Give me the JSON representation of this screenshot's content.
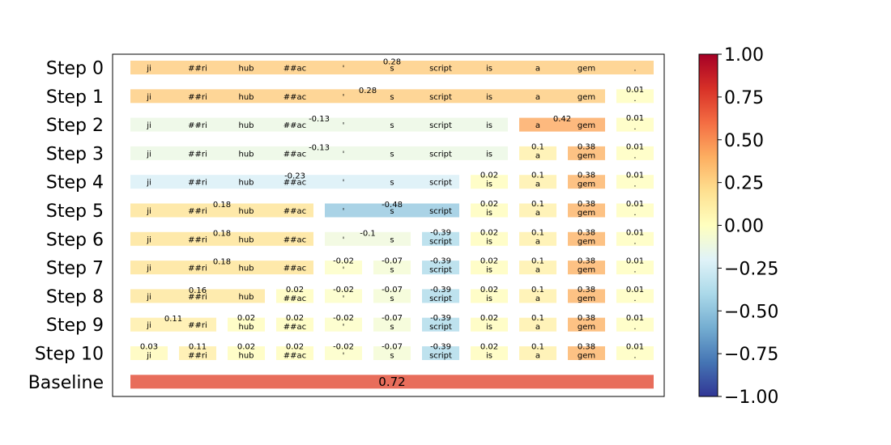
{
  "chart_data": {
    "type": "heatmap",
    "title": "",
    "xlabel": "",
    "ylabel": "",
    "tokens": [
      "ji",
      "##ri",
      "hub",
      "##ac",
      "'",
      "s",
      "script",
      "is",
      "a",
      "gem",
      "."
    ],
    "color_scale": {
      "min": -1.0,
      "max": 1.0,
      "colormap": "RdYlBu_r",
      "ticks": [
        "1.00",
        "0.75",
        "0.50",
        "0.25",
        "0.00",
        "−0.25",
        "−0.50",
        "−0.75",
        "−1.00"
      ]
    },
    "rows": [
      {
        "label": "Step 0",
        "segments": [
          {
            "start": 0,
            "end": 10,
            "value": 0.28,
            "display": "0.28"
          }
        ]
      },
      {
        "label": "Step 1",
        "segments": [
          {
            "start": 0,
            "end": 9,
            "value": 0.28,
            "display": "0.28"
          },
          {
            "start": 10,
            "end": 10,
            "value": 0.01,
            "display": "0.01"
          }
        ]
      },
      {
        "label": "Step 2",
        "segments": [
          {
            "start": 0,
            "end": 7,
            "value": -0.13,
            "display": "-0.13"
          },
          {
            "start": 8,
            "end": 9,
            "value": 0.42,
            "display": "0.42"
          },
          {
            "start": 10,
            "end": 10,
            "value": 0.01,
            "display": "0.01"
          }
        ]
      },
      {
        "label": "Step 3",
        "segments": [
          {
            "start": 0,
            "end": 7,
            "value": -0.13,
            "display": "-0.13"
          },
          {
            "start": 8,
            "end": 8,
            "value": 0.1,
            "display": "0.1"
          },
          {
            "start": 9,
            "end": 9,
            "value": 0.38,
            "display": "0.38"
          },
          {
            "start": 10,
            "end": 10,
            "value": 0.01,
            "display": "0.01"
          }
        ]
      },
      {
        "label": "Step 4",
        "segments": [
          {
            "start": 0,
            "end": 6,
            "value": -0.23,
            "display": "-0.23"
          },
          {
            "start": 7,
            "end": 7,
            "value": 0.02,
            "display": "0.02"
          },
          {
            "start": 8,
            "end": 8,
            "value": 0.1,
            "display": "0.1"
          },
          {
            "start": 9,
            "end": 9,
            "value": 0.38,
            "display": "0.38"
          },
          {
            "start": 10,
            "end": 10,
            "value": 0.01,
            "display": "0.01"
          }
        ]
      },
      {
        "label": "Step 5",
        "segments": [
          {
            "start": 0,
            "end": 3,
            "value": 0.18,
            "display": "0.18"
          },
          {
            "start": 4,
            "end": 6,
            "value": -0.48,
            "display": "-0.48"
          },
          {
            "start": 7,
            "end": 7,
            "value": 0.02,
            "display": "0.02"
          },
          {
            "start": 8,
            "end": 8,
            "value": 0.1,
            "display": "0.1"
          },
          {
            "start": 9,
            "end": 9,
            "value": 0.38,
            "display": "0.38"
          },
          {
            "start": 10,
            "end": 10,
            "value": 0.01,
            "display": "0.01"
          }
        ]
      },
      {
        "label": "Step 6",
        "segments": [
          {
            "start": 0,
            "end": 3,
            "value": 0.18,
            "display": "0.18"
          },
          {
            "start": 4,
            "end": 5,
            "value": -0.1,
            "display": "-0.1"
          },
          {
            "start": 6,
            "end": 6,
            "value": -0.39,
            "display": "-0.39"
          },
          {
            "start": 7,
            "end": 7,
            "value": 0.02,
            "display": "0.02"
          },
          {
            "start": 8,
            "end": 8,
            "value": 0.1,
            "display": "0.1"
          },
          {
            "start": 9,
            "end": 9,
            "value": 0.38,
            "display": "0.38"
          },
          {
            "start": 10,
            "end": 10,
            "value": 0.01,
            "display": "0.01"
          }
        ]
      },
      {
        "label": "Step 7",
        "segments": [
          {
            "start": 0,
            "end": 3,
            "value": 0.18,
            "display": "0.18"
          },
          {
            "start": 4,
            "end": 4,
            "value": -0.02,
            "display": "-0.02"
          },
          {
            "start": 5,
            "end": 5,
            "value": -0.07,
            "display": "-0.07"
          },
          {
            "start": 6,
            "end": 6,
            "value": -0.39,
            "display": "-0.39"
          },
          {
            "start": 7,
            "end": 7,
            "value": 0.02,
            "display": "0.02"
          },
          {
            "start": 8,
            "end": 8,
            "value": 0.1,
            "display": "0.1"
          },
          {
            "start": 9,
            "end": 9,
            "value": 0.38,
            "display": "0.38"
          },
          {
            "start": 10,
            "end": 10,
            "value": 0.01,
            "display": "0.01"
          }
        ]
      },
      {
        "label": "Step 8",
        "segments": [
          {
            "start": 0,
            "end": 2,
            "value": 0.16,
            "display": "0.16"
          },
          {
            "start": 3,
            "end": 3,
            "value": 0.02,
            "display": "0.02"
          },
          {
            "start": 4,
            "end": 4,
            "value": -0.02,
            "display": "-0.02"
          },
          {
            "start": 5,
            "end": 5,
            "value": -0.07,
            "display": "-0.07"
          },
          {
            "start": 6,
            "end": 6,
            "value": -0.39,
            "display": "-0.39"
          },
          {
            "start": 7,
            "end": 7,
            "value": 0.02,
            "display": "0.02"
          },
          {
            "start": 8,
            "end": 8,
            "value": 0.1,
            "display": "0.1"
          },
          {
            "start": 9,
            "end": 9,
            "value": 0.38,
            "display": "0.38"
          },
          {
            "start": 10,
            "end": 10,
            "value": 0.01,
            "display": "0.01"
          }
        ]
      },
      {
        "label": "Step 9",
        "segments": [
          {
            "start": 0,
            "end": 1,
            "value": 0.11,
            "display": "0.11"
          },
          {
            "start": 2,
            "end": 2,
            "value": 0.02,
            "display": "0.02"
          },
          {
            "start": 3,
            "end": 3,
            "value": 0.02,
            "display": "0.02"
          },
          {
            "start": 4,
            "end": 4,
            "value": -0.02,
            "display": "-0.02"
          },
          {
            "start": 5,
            "end": 5,
            "value": -0.07,
            "display": "-0.07"
          },
          {
            "start": 6,
            "end": 6,
            "value": -0.39,
            "display": "-0.39"
          },
          {
            "start": 7,
            "end": 7,
            "value": 0.02,
            "display": "0.02"
          },
          {
            "start": 8,
            "end": 8,
            "value": 0.1,
            "display": "0.1"
          },
          {
            "start": 9,
            "end": 9,
            "value": 0.38,
            "display": "0.38"
          },
          {
            "start": 10,
            "end": 10,
            "value": 0.01,
            "display": "0.01"
          }
        ]
      },
      {
        "label": "Step 10",
        "segments": [
          {
            "start": 0,
            "end": 0,
            "value": 0.03,
            "display": "0.03"
          },
          {
            "start": 1,
            "end": 1,
            "value": 0.11,
            "display": "0.11"
          },
          {
            "start": 2,
            "end": 2,
            "value": 0.02,
            "display": "0.02"
          },
          {
            "start": 3,
            "end": 3,
            "value": 0.02,
            "display": "0.02"
          },
          {
            "start": 4,
            "end": 4,
            "value": -0.02,
            "display": "-0.02"
          },
          {
            "start": 5,
            "end": 5,
            "value": -0.07,
            "display": "-0.07"
          },
          {
            "start": 6,
            "end": 6,
            "value": -0.39,
            "display": "-0.39"
          },
          {
            "start": 7,
            "end": 7,
            "value": 0.02,
            "display": "0.02"
          },
          {
            "start": 8,
            "end": 8,
            "value": 0.1,
            "display": "0.1"
          },
          {
            "start": 9,
            "end": 9,
            "value": 0.38,
            "display": "0.38"
          },
          {
            "start": 10,
            "end": 10,
            "value": 0.01,
            "display": "0.01"
          }
        ]
      }
    ],
    "baseline": {
      "label": "Baseline",
      "value": 0.72,
      "display": "0.72"
    }
  }
}
